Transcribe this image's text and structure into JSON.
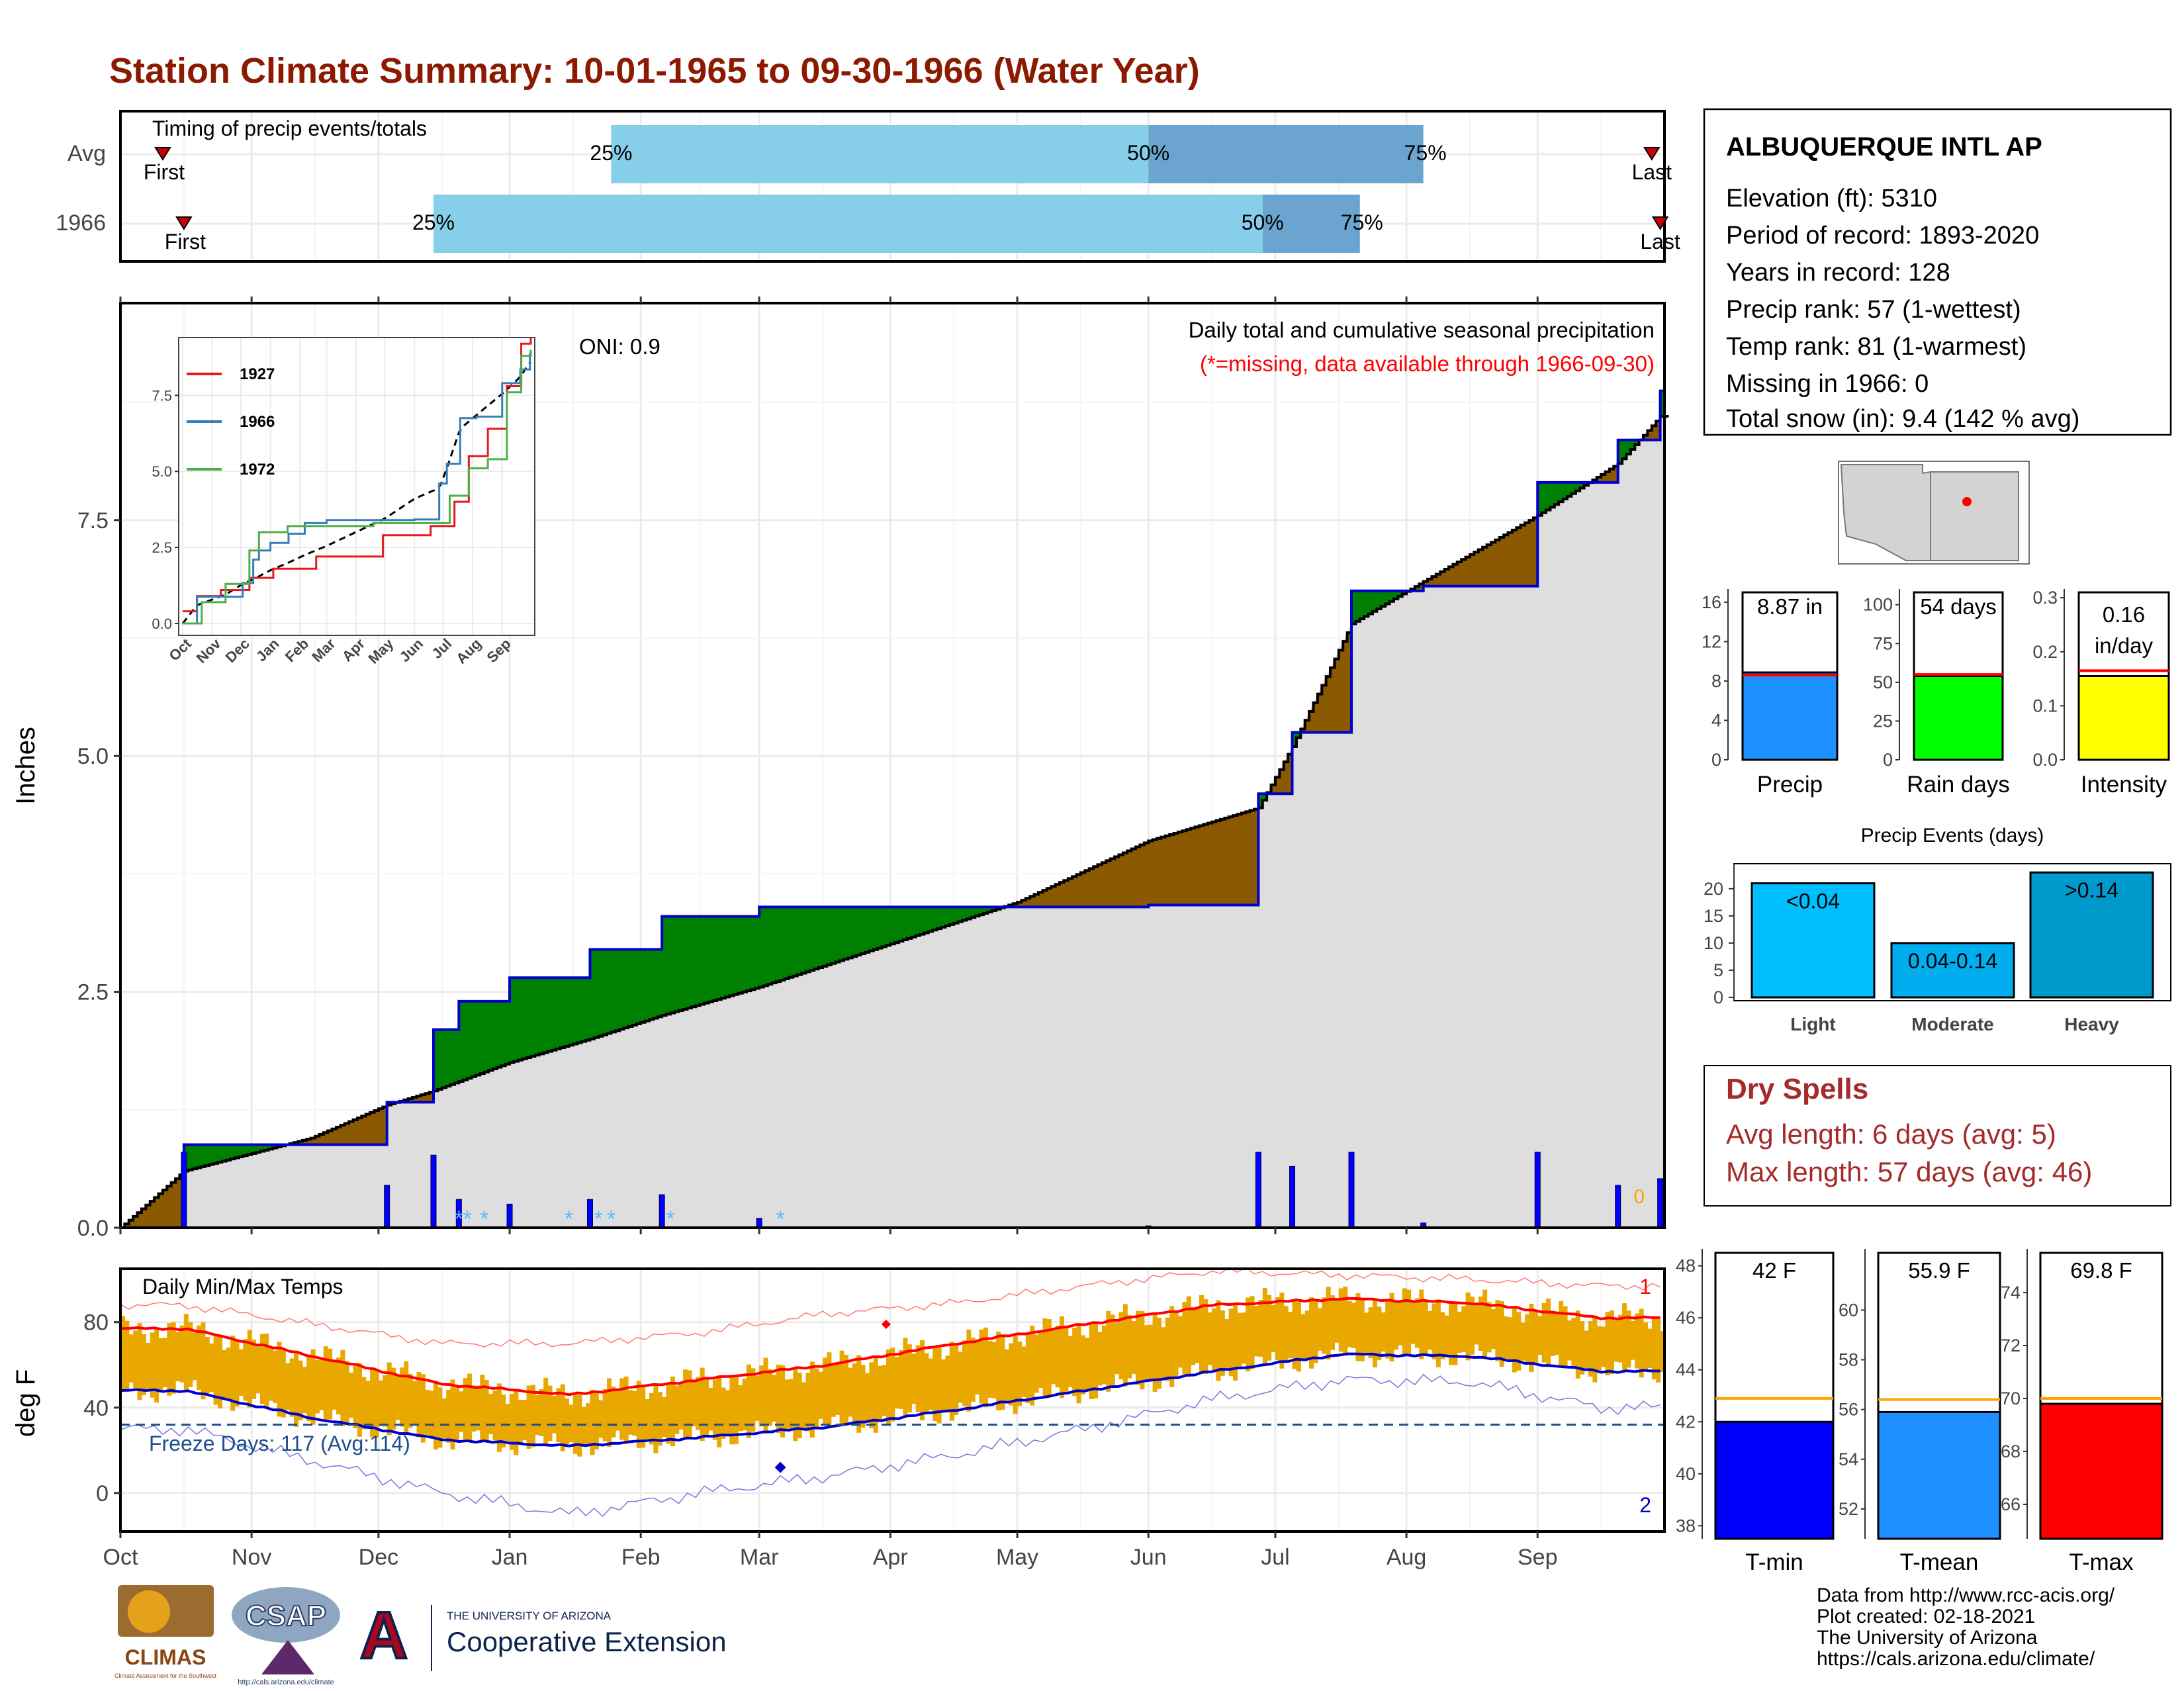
{
  "title": "Station Climate Summary: 10-01-1965 to 09-30-1966 (Water Year)",
  "colors": {
    "title": "#8B1A00",
    "light_blue": "#87CEEB",
    "mid_blue": "#6BA5CF",
    "wet": "#008000",
    "dry": "#8B5A00",
    "normal_fill": "#DEDEDE",
    "precip_bar": "#0000FF",
    "temp_bar": "#E9A800",
    "tmax_line": "#FF0000",
    "tmin_line": "#0000CD",
    "freeze_line": "#1F4E8C",
    "dry_spell_text": "#A52A2A"
  },
  "timing": {
    "title": "Timing of precip events/totals",
    "rows": [
      {
        "label": "Avg",
        "first_label": "First",
        "last_label": "Last",
        "first_date": "1965-10-11",
        "last_date": "1966-09-28",
        "p25": "1966-01-25",
        "p50": "1966-06-01",
        "p75": "1966-08-05",
        "p25_label": "25%",
        "p50_label": "50%",
        "p75_label": "75%"
      },
      {
        "label": "1966",
        "first_label": "First",
        "last_label": "Last",
        "first_date": "1965-10-16",
        "last_date": "1966-09-30",
        "p25": "1965-12-14",
        "p50": "1966-06-28",
        "p75": "1966-07-21",
        "p25_label": "25%",
        "p50_label": "50%",
        "p75_label": "75%"
      }
    ]
  },
  "months": [
    "Oct",
    "Nov",
    "Dec",
    "Jan",
    "Feb",
    "Mar",
    "Apr",
    "May",
    "Jun",
    "Jul",
    "Aug",
    "Sep"
  ],
  "precip": {
    "title": "Daily total and cumulative seasonal precipitation",
    "subtitle": "(*=missing, data available through 1966-09-30)",
    "oni": "ONI: 0.9",
    "ylabel": "Inches",
    "yticks": [
      "0.0",
      "2.5",
      "5.0",
      "7.5"
    ],
    "corner_value": "0"
  },
  "inset": {
    "legend": [
      "1927",
      "1966",
      "1972"
    ],
    "yticks": [
      "0.0",
      "2.5",
      "5.0",
      "7.5"
    ],
    "xticks": [
      "Oct",
      "Nov",
      "Dec",
      "Jan",
      "Feb",
      "Mar",
      "Apr",
      "May",
      "Jun",
      "Jul",
      "Aug",
      "Sep"
    ]
  },
  "temps": {
    "title": "Daily Min/Max Temps",
    "ylabel": "deg F",
    "yticks": [
      "0",
      "40",
      "80"
    ],
    "freeze_label": "Freeze Days: 117 (Avg:114)",
    "record_high_count": "1",
    "record_low_count": "2"
  },
  "station": {
    "name": "ALBUQUERQUE INTL AP",
    "lines": [
      "Elevation (ft): 5310",
      "Period of record: 1893-2020",
      "Years in record: 128",
      "Precip rank: 57 (1-wettest)",
      "Temp rank: 81 (1-warmest)",
      "Missing in 1966: 0",
      "Total snow (in): 9.4 (142 % avg)"
    ]
  },
  "mini_bars": [
    {
      "label": "Precip",
      "value_text": "8.87 in",
      "value": 8.87,
      "avg": 8.6,
      "max": 17,
      "ticks": [
        "0",
        "4",
        "8",
        "12",
        "16"
      ],
      "tick_values": [
        0,
        4,
        8,
        12,
        16
      ],
      "color": "#1E90FF"
    },
    {
      "label": "Rain days",
      "value_text": "54 days",
      "value": 54,
      "avg": 55,
      "max": 108,
      "ticks": [
        "0",
        "25",
        "50",
        "75",
        "100"
      ],
      "tick_values": [
        0,
        25,
        50,
        75,
        100
      ],
      "color": "#00FF00"
    },
    {
      "label": "Intensity",
      "value_text": "0.16 in/day",
      "value_text_1": "0.16",
      "value_text_2": "in/day",
      "value": 0.155,
      "avg": 0.165,
      "max": 0.31,
      "ticks": [
        "0.0",
        "0.1",
        "0.2",
        "0.3"
      ],
      "tick_values": [
        0,
        0.1,
        0.2,
        0.3
      ],
      "color": "#FFFF00"
    }
  ],
  "events": {
    "title": "Precip Events (days)",
    "categories": [
      "Light",
      "Moderate",
      "Heavy"
    ],
    "bar_labels": [
      "<0.04",
      "0.04-0.14",
      ">0.14"
    ],
    "values": [
      21,
      10,
      23
    ],
    "colors": [
      "#00BFFF",
      "#00AEEF",
      "#0099CC"
    ],
    "ticks": [
      "0",
      "5",
      "10",
      "15",
      "20"
    ],
    "tick_values": [
      0,
      5,
      10,
      15,
      20
    ]
  },
  "dry_spells": {
    "title": "Dry Spells",
    "avg_line": "Avg length: 6 days (avg: 5)",
    "max_line": "Max length: 57 days (avg: 46)"
  },
  "temp_bars": [
    {
      "label": "T-min",
      "value_text": "42 F",
      "value": 42,
      "avg": 42.9,
      "min": 37.5,
      "max": 48.5,
      "ticks": [
        "38",
        "40",
        "42",
        "44",
        "46",
        "48"
      ],
      "tick_values": [
        38,
        40,
        42,
        44,
        46,
        48
      ],
      "color": "#0000FF"
    },
    {
      "label": "T-mean",
      "value_text": "55.9 F",
      "value": 55.9,
      "avg": 56.4,
      "min": 50.8,
      "max": 62.3,
      "ticks": [
        "52",
        "54",
        "56",
        "58",
        "60"
      ],
      "tick_values": [
        52,
        54,
        56,
        58,
        60
      ],
      "color": "#1E90FF"
    },
    {
      "label": "T-max",
      "value_text": "69.8 F",
      "value": 69.8,
      "avg": 70.0,
      "min": 64.7,
      "max": 75.5,
      "ticks": [
        "66",
        "68",
        "70",
        "72",
        "74"
      ],
      "tick_values": [
        66,
        68,
        70,
        72,
        74
      ],
      "color": "#FF0000"
    }
  ],
  "logos": {
    "climas": "CLIMAS",
    "climas_sub": "Climate Assessment for the Southwest",
    "csap": "CSAP",
    "csap_url": "http://cals.arizona.edu/climate",
    "ua_small": "THE UNIVERSITY OF ARIZONA",
    "ua_big": "Cooperative Extension",
    "ua_letter": "A"
  },
  "credits": [
    "Data from http://www.rcc-acis.org/",
    "Plot created: 02-18-2021",
    "The University of Arizona",
    "https://cals.arizona.edu/climate/"
  ],
  "chart_data": [
    {
      "type": "area",
      "title": "Daily total and cumulative seasonal precipitation",
      "ylabel": "Inches",
      "ylim": [
        0,
        9.8
      ],
      "x": [
        "1965-10-01",
        "1965-10-16",
        "1965-11-15",
        "1965-12-03",
        "1965-12-14",
        "1965-12-20",
        "1966-01-01",
        "1966-01-20",
        "1966-02-06",
        "1966-03-01",
        "1966-05-01",
        "1966-06-01",
        "1966-06-27",
        "1966-07-05",
        "1966-07-19",
        "1966-08-05",
        "1966-09-01",
        "1966-09-20",
        "1966-09-30"
      ],
      "series": [
        {
          "name": "1966",
          "values": [
            0.0,
            0.88,
            0.88,
            1.33,
            2.1,
            2.4,
            2.65,
            2.95,
            3.3,
            3.4,
            3.4,
            3.42,
            4.6,
            5.25,
            6.75,
            6.8,
            7.9,
            8.35,
            8.87
          ]
        },
        {
          "name": "Avg",
          "values": [
            0.0,
            0.6,
            0.95,
            1.3,
            1.45,
            1.55,
            1.75,
            2.0,
            2.25,
            2.55,
            3.45,
            4.1,
            4.45,
            5.1,
            6.4,
            6.85,
            7.55,
            8.1,
            8.6
          ]
        }
      ]
    },
    {
      "type": "line",
      "title": "Daily Min/Max Temps",
      "ylabel": "deg F",
      "ylim": [
        -18,
        105
      ],
      "x": [
        "Oct",
        "Nov",
        "Dec",
        "Jan",
        "Feb",
        "Mar",
        "Apr",
        "May",
        "Jun",
        "Jul",
        "Aug",
        "Sep"
      ],
      "series": [
        {
          "name": "Avg max",
          "values": [
            77,
            64,
            51,
            46,
            53,
            60,
            70,
            79,
            88,
            91,
            89,
            82
          ]
        },
        {
          "name": "Avg min",
          "values": [
            48,
            35,
            25,
            22,
            26,
            31,
            39,
            48,
            57,
            65,
            64,
            57
          ]
        },
        {
          "name": "Record max",
          "values": [
            88,
            79,
            70,
            70,
            75,
            84,
            89,
            97,
            104,
            102,
            100,
            97
          ]
        },
        {
          "name": "Record min",
          "values": [
            30,
            15,
            0,
            -10,
            0,
            8,
            18,
            30,
            44,
            53,
            52,
            40
          ]
        }
      ]
    },
    {
      "type": "bar",
      "title": "Precip Events (days)",
      "categories": [
        "Light",
        "Moderate",
        "Heavy"
      ],
      "values": [
        21,
        10,
        23
      ]
    }
  ]
}
